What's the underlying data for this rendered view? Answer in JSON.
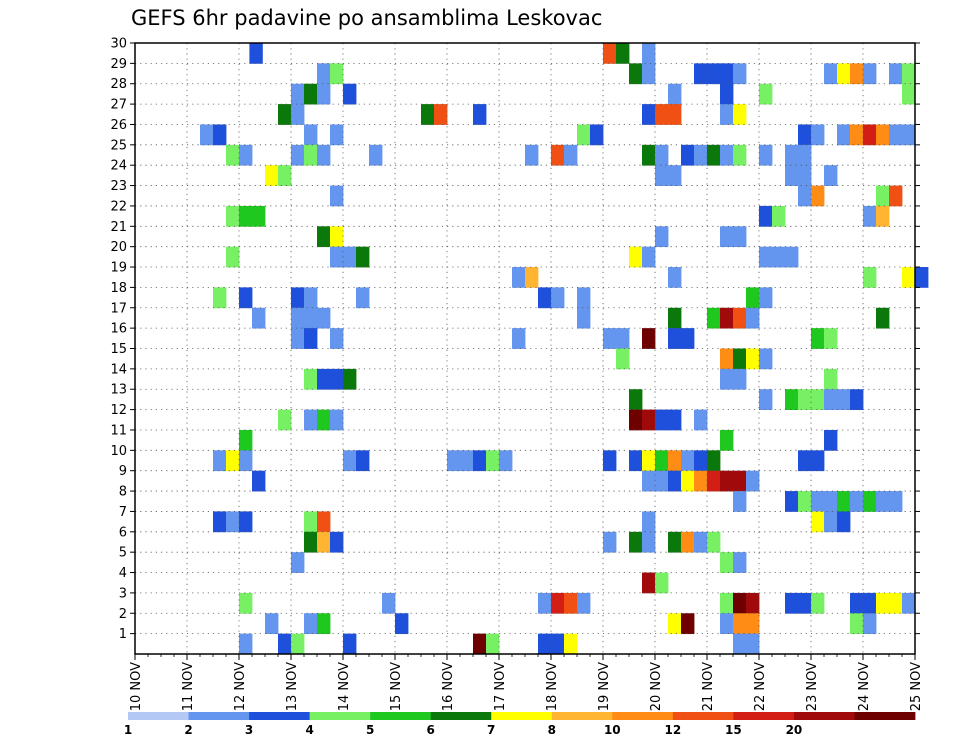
{
  "chart_data": {
    "type": "heatmap",
    "title": "GEFS 6hr padavine po ansamblima Leskovac",
    "x_labels": [
      "10 NOV",
      "11 NOV",
      "12 NOV",
      "13 NOV",
      "14 NOV",
      "15 NOV",
      "16 NOV",
      "17 NOV",
      "18 NOV",
      "19 NOV",
      "20 NOV",
      "21 NOV",
      "22 NOV",
      "23 NOV",
      "24 NOV",
      "25 NOV"
    ],
    "y_labels": [
      "1",
      "2",
      "3",
      "4",
      "5",
      "6",
      "7",
      "8",
      "9",
      "10",
      "11",
      "12",
      "13",
      "14",
      "15",
      "16",
      "17",
      "18",
      "19",
      "20",
      "21",
      "22",
      "23",
      "24",
      "25",
      "26",
      "27",
      "28",
      "29",
      "30"
    ],
    "time_steps_per_day": 4,
    "ylim": [
      0,
      30
    ],
    "grid": true,
    "legend_position": "bottom",
    "legend": {
      "labels": [
        "1",
        "2",
        "3",
        "4",
        "5",
        "6",
        "7",
        "8",
        "10",
        "12",
        "15",
        "20"
      ],
      "colors": [
        "#b4c8f5",
        "#6496f0",
        "#1e50dc",
        "#78f064",
        "#1ec81e",
        "#0a780a",
        "#ffff00",
        "#ffb432",
        "#ff8c14",
        "#f05014",
        "#d21e14",
        "#a00a0a",
        "#6e0000"
      ]
    },
    "cells": [
      [
        12.2,
        30,
        2
      ],
      [
        19,
        30,
        9
      ],
      [
        19.25,
        30,
        5
      ],
      [
        19.75,
        30,
        1
      ],
      [
        13.5,
        29,
        1
      ],
      [
        13.75,
        29,
        3
      ],
      [
        19.5,
        29,
        5
      ],
      [
        19.75,
        29,
        1
      ],
      [
        20.75,
        29,
        2
      ],
      [
        21,
        29,
        2
      ],
      [
        21.25,
        29,
        2
      ],
      [
        21.5,
        29,
        1
      ],
      [
        23.25,
        29,
        1
      ],
      [
        23.5,
        29,
        6
      ],
      [
        23.75,
        29,
        8
      ],
      [
        24,
        29,
        1
      ],
      [
        24.5,
        29,
        1
      ],
      [
        24.75,
        29,
        3
      ],
      [
        13,
        28,
        1
      ],
      [
        13.25,
        28,
        5
      ],
      [
        13.5,
        28,
        1
      ],
      [
        14,
        28,
        2
      ],
      [
        20.25,
        28,
        1
      ],
      [
        21.25,
        28,
        2
      ],
      [
        22,
        28,
        3
      ],
      [
        24.75,
        28,
        3
      ],
      [
        12.75,
        27,
        5
      ],
      [
        13,
        27,
        1
      ],
      [
        15.5,
        27,
        5
      ],
      [
        15.75,
        27,
        9
      ],
      [
        16.5,
        27,
        2
      ],
      [
        19.75,
        27,
        2
      ],
      [
        20,
        27,
        9
      ],
      [
        20.25,
        27,
        9
      ],
      [
        21.25,
        27,
        1
      ],
      [
        21.5,
        27,
        6
      ],
      [
        11.25,
        26,
        1
      ],
      [
        11.5,
        26,
        2
      ],
      [
        13.25,
        26,
        1
      ],
      [
        13.75,
        26,
        1
      ],
      [
        18.5,
        26,
        3
      ],
      [
        18.75,
        26,
        2
      ],
      [
        22.75,
        26,
        2
      ],
      [
        23,
        26,
        1
      ],
      [
        23.5,
        26,
        1
      ],
      [
        23.75,
        26,
        8
      ],
      [
        24,
        26,
        10
      ],
      [
        24.25,
        26,
        8
      ],
      [
        24.5,
        26,
        1
      ],
      [
        24.75,
        26,
        1
      ],
      [
        11.75,
        25,
        3
      ],
      [
        12,
        25,
        1
      ],
      [
        13,
        25,
        1
      ],
      [
        13.25,
        25,
        3
      ],
      [
        13.5,
        25,
        1
      ],
      [
        14.5,
        25,
        1
      ],
      [
        17.5,
        25,
        1
      ],
      [
        18,
        25,
        9
      ],
      [
        18.25,
        25,
        1
      ],
      [
        19.75,
        25,
        5
      ],
      [
        20,
        25,
        1
      ],
      [
        20.5,
        25,
        2
      ],
      [
        20.75,
        25,
        1
      ],
      [
        21,
        25,
        5
      ],
      [
        21.25,
        25,
        1
      ],
      [
        21.5,
        25,
        3
      ],
      [
        22,
        25,
        1
      ],
      [
        22.5,
        25,
        1
      ],
      [
        22.75,
        25,
        1
      ],
      [
        12.5,
        24,
        6
      ],
      [
        12.75,
        24,
        3
      ],
      [
        20,
        24,
        1
      ],
      [
        20.25,
        24,
        1
      ],
      [
        22.5,
        24,
        1
      ],
      [
        22.75,
        24,
        1
      ],
      [
        23.25,
        24,
        1
      ],
      [
        13.75,
        23,
        1
      ],
      [
        22.75,
        23,
        1
      ],
      [
        23,
        23,
        8
      ],
      [
        24.25,
        23,
        3
      ],
      [
        24.5,
        23,
        9
      ],
      [
        11.75,
        22,
        3
      ],
      [
        12,
        22,
        4
      ],
      [
        12.25,
        22,
        4
      ],
      [
        22,
        22,
        2
      ],
      [
        22.25,
        22,
        3
      ],
      [
        24,
        22,
        1
      ],
      [
        24.25,
        22,
        7
      ],
      [
        13.5,
        21,
        5
      ],
      [
        13.75,
        21,
        6
      ],
      [
        20,
        21,
        1
      ],
      [
        21.25,
        21,
        1
      ],
      [
        21.5,
        21,
        1
      ],
      [
        11.75,
        20,
        3
      ],
      [
        13.75,
        20,
        1
      ],
      [
        14,
        20,
        1
      ],
      [
        14.25,
        20,
        5
      ],
      [
        19.5,
        20,
        6
      ],
      [
        19.75,
        20,
        1
      ],
      [
        22,
        20,
        1
      ],
      [
        22.25,
        20,
        1
      ],
      [
        22.5,
        20,
        1
      ],
      [
        17.25,
        19,
        1
      ],
      [
        17.5,
        19,
        7
      ],
      [
        20.25,
        19,
        1
      ],
      [
        24,
        19,
        3
      ],
      [
        24.75,
        19,
        6
      ],
      [
        25,
        19,
        2
      ],
      [
        11.5,
        18,
        3
      ],
      [
        12,
        18,
        2
      ],
      [
        13,
        18,
        2
      ],
      [
        13.25,
        18,
        1
      ],
      [
        14.25,
        18,
        1
      ],
      [
        17.75,
        18,
        2
      ],
      [
        18,
        18,
        1
      ],
      [
        18.5,
        18,
        1
      ],
      [
        21.75,
        18,
        4
      ],
      [
        22,
        18,
        1
      ],
      [
        12.25,
        17,
        1
      ],
      [
        13,
        17,
        1
      ],
      [
        13.25,
        17,
        1
      ],
      [
        13.5,
        17,
        1
      ],
      [
        18.5,
        17,
        1
      ],
      [
        20.25,
        17,
        5
      ],
      [
        21,
        17,
        4
      ],
      [
        21.25,
        17,
        11
      ],
      [
        21.5,
        17,
        9
      ],
      [
        21.75,
        17,
        1
      ],
      [
        24.25,
        17,
        5
      ],
      [
        13,
        16,
        1
      ],
      [
        13.25,
        16,
        2
      ],
      [
        13.75,
        16,
        1
      ],
      [
        17.25,
        16,
        1
      ],
      [
        19,
        16,
        1
      ],
      [
        19.25,
        16,
        1
      ],
      [
        19.75,
        16,
        12
      ],
      [
        20.25,
        16,
        2
      ],
      [
        20.5,
        16,
        2
      ],
      [
        23,
        16,
        4
      ],
      [
        23.25,
        16,
        3
      ],
      [
        19.25,
        15,
        3
      ],
      [
        21.25,
        15,
        8
      ],
      [
        21.5,
        15,
        5
      ],
      [
        21.75,
        15,
        6
      ],
      [
        22,
        15,
        1
      ],
      [
        13.25,
        14,
        3
      ],
      [
        13.5,
        14,
        2
      ],
      [
        13.75,
        14,
        2
      ],
      [
        14,
        14,
        5
      ],
      [
        21.25,
        14,
        1
      ],
      [
        21.5,
        14,
        1
      ],
      [
        23.25,
        14,
        3
      ],
      [
        19.5,
        13,
        5
      ],
      [
        22,
        13,
        1
      ],
      [
        22.5,
        13,
        4
      ],
      [
        22.75,
        13,
        3
      ],
      [
        23,
        13,
        3
      ],
      [
        23.25,
        13,
        1
      ],
      [
        23.5,
        13,
        1
      ],
      [
        23.75,
        13,
        2
      ],
      [
        12.75,
        12,
        3
      ],
      [
        13.25,
        12,
        1
      ],
      [
        13.5,
        12,
        4
      ],
      [
        13.75,
        12,
        1
      ],
      [
        19.5,
        12,
        12
      ],
      [
        19.75,
        12,
        11
      ],
      [
        20,
        12,
        2
      ],
      [
        20.25,
        12,
        2
      ],
      [
        20.75,
        12,
        1
      ],
      [
        12,
        11,
        4
      ],
      [
        21.25,
        11,
        4
      ],
      [
        23.25,
        11,
        2
      ],
      [
        11.5,
        10,
        1
      ],
      [
        11.75,
        10,
        6
      ],
      [
        12,
        10,
        1
      ],
      [
        14,
        10,
        1
      ],
      [
        14.25,
        10,
        2
      ],
      [
        16,
        10,
        1
      ],
      [
        16.25,
        10,
        1
      ],
      [
        16.5,
        10,
        2
      ],
      [
        16.75,
        10,
        3
      ],
      [
        17,
        10,
        1
      ],
      [
        19,
        10,
        2
      ],
      [
        19.5,
        10,
        2
      ],
      [
        19.75,
        10,
        6
      ],
      [
        20,
        10,
        4
      ],
      [
        20.25,
        10,
        8
      ],
      [
        20.5,
        10,
        1
      ],
      [
        20.75,
        10,
        2
      ],
      [
        21,
        10,
        5
      ],
      [
        22.75,
        10,
        2
      ],
      [
        23,
        10,
        2
      ],
      [
        12.25,
        9,
        2
      ],
      [
        19.75,
        9,
        1
      ],
      [
        20,
        9,
        1
      ],
      [
        20.25,
        9,
        2
      ],
      [
        20.5,
        9,
        6
      ],
      [
        20.75,
        9,
        8
      ],
      [
        21,
        9,
        10
      ],
      [
        21.25,
        9,
        11
      ],
      [
        21.5,
        9,
        11
      ],
      [
        21.75,
        9,
        1
      ],
      [
        21.5,
        8,
        1
      ],
      [
        22.5,
        8,
        2
      ],
      [
        22.75,
        8,
        3
      ],
      [
        23,
        8,
        1
      ],
      [
        23.25,
        8,
        1
      ],
      [
        23.5,
        8,
        4
      ],
      [
        23.75,
        8,
        1
      ],
      [
        24,
        8,
        4
      ],
      [
        24.25,
        8,
        1
      ],
      [
        24.5,
        8,
        1
      ],
      [
        11.5,
        7,
        2
      ],
      [
        11.75,
        7,
        1
      ],
      [
        12,
        7,
        2
      ],
      [
        13.25,
        7,
        3
      ],
      [
        13.5,
        7,
        9
      ],
      [
        19.75,
        7,
        1
      ],
      [
        23,
        7,
        6
      ],
      [
        23.25,
        7,
        1
      ],
      [
        23.5,
        7,
        2
      ],
      [
        13.25,
        6,
        5
      ],
      [
        13.5,
        6,
        7
      ],
      [
        13.75,
        6,
        2
      ],
      [
        19,
        6,
        1
      ],
      [
        19.5,
        6,
        5
      ],
      [
        19.75,
        6,
        1
      ],
      [
        20.25,
        6,
        5
      ],
      [
        20.5,
        6,
        8
      ],
      [
        20.75,
        6,
        1
      ],
      [
        21,
        6,
        3
      ],
      [
        13,
        5,
        1
      ],
      [
        21.25,
        5,
        3
      ],
      [
        21.5,
        5,
        1
      ],
      [
        19.75,
        4,
        11
      ],
      [
        20,
        4,
        3
      ],
      [
        12,
        3,
        3
      ],
      [
        14.75,
        3,
        1
      ],
      [
        17.75,
        3,
        1
      ],
      [
        18,
        3,
        10
      ],
      [
        18.25,
        3,
        9
      ],
      [
        18.5,
        3,
        1
      ],
      [
        21.25,
        3,
        3
      ],
      [
        21.5,
        3,
        12
      ],
      [
        21.75,
        3,
        11
      ],
      [
        22.5,
        3,
        2
      ],
      [
        22.75,
        3,
        2
      ],
      [
        23,
        3,
        3
      ],
      [
        23.75,
        3,
        2
      ],
      [
        24,
        3,
        2
      ],
      [
        24.25,
        3,
        6
      ],
      [
        24.5,
        3,
        6
      ],
      [
        24.75,
        3,
        1
      ],
      [
        12.5,
        2,
        1
      ],
      [
        13.25,
        2,
        1
      ],
      [
        13.5,
        2,
        4
      ],
      [
        15,
        2,
        2
      ],
      [
        20.25,
        2,
        6
      ],
      [
        20.5,
        2,
        12
      ],
      [
        21.25,
        2,
        1
      ],
      [
        21.5,
        2,
        8
      ],
      [
        21.75,
        2,
        8
      ],
      [
        23.75,
        2,
        3
      ],
      [
        24,
        2,
        1
      ],
      [
        12,
        1,
        1
      ],
      [
        12.75,
        1,
        2
      ],
      [
        13,
        1,
        3
      ],
      [
        14,
        1,
        2
      ],
      [
        16.5,
        1,
        12
      ],
      [
        16.75,
        1,
        3
      ],
      [
        17.75,
        1,
        2
      ],
      [
        18,
        1,
        2
      ],
      [
        18.25,
        1,
        6
      ],
      [
        21.5,
        1,
        1
      ],
      [
        21.75,
        1,
        1
      ]
    ]
  }
}
